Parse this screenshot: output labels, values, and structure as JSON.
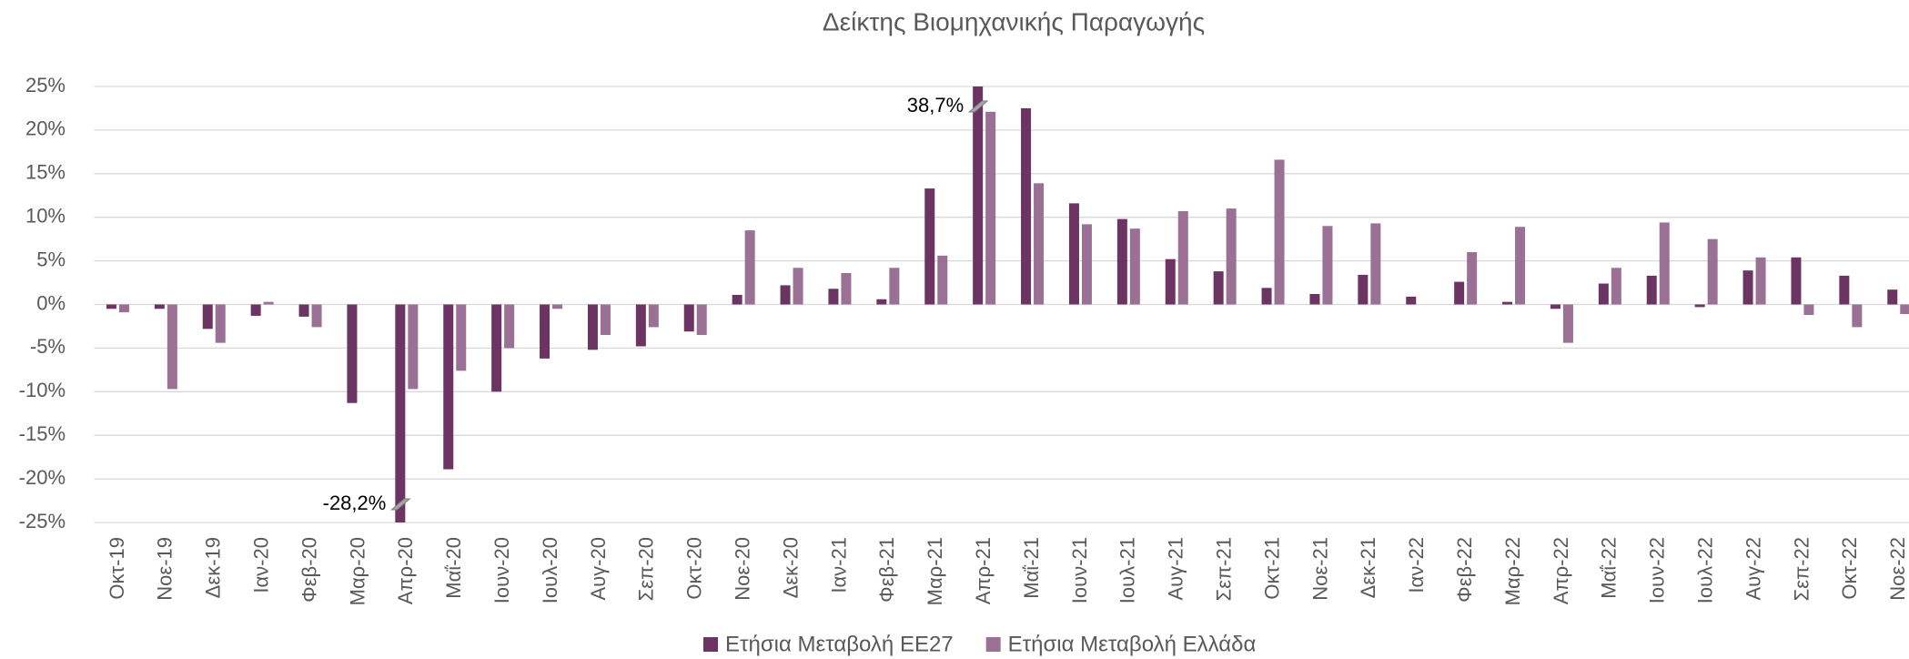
{
  "chart_data": {
    "type": "bar",
    "title": "Δείκτης Βιομηχανικής Παραγωγής",
    "categories": [
      "Οκτ-19",
      "Νοε-19",
      "Δεκ-19",
      "Ιαν-20",
      "Φεβ-20",
      "Μαρ-20",
      "Απρ-20",
      "Μαΐ-20",
      "Ιουν-20",
      "Ιουλ-20",
      "Αυγ-20",
      "Σεπ-20",
      "Οκτ-20",
      "Νοε-20",
      "Δεκ-20",
      "Ιαν-21",
      "Φεβ-21",
      "Μαρ-21",
      "Απρ-21",
      "Μαΐ-21",
      "Ιουν-21",
      "Ιουλ-21",
      "Αυγ-21",
      "Σεπ-21",
      "Οκτ-21",
      "Νοε-21",
      "Δεκ-21",
      "Ιαν-22",
      "Φεβ-22",
      "Μαρ-22",
      "Απρ-22",
      "Μαΐ-22",
      "Ιουν-22",
      "Ιουλ-22",
      "Αυγ-22",
      "Σεπ-22",
      "Οκτ-22",
      "Νοε-22"
    ],
    "series": [
      {
        "name": "Ετήσια Μεταβολή ΕΕ27",
        "color": "#6b3463",
        "values": [
          -0.5,
          -0.5,
          -2.8,
          -1.3,
          -1.4,
          -11.3,
          -28.2,
          -18.9,
          -10.0,
          -6.2,
          -5.2,
          -4.8,
          -3.1,
          1.1,
          2.2,
          1.8,
          0.6,
          13.3,
          38.7,
          22.5,
          11.6,
          9.8,
          5.2,
          3.8,
          1.9,
          1.2,
          3.4,
          0.9,
          2.6,
          0.3,
          -0.5,
          2.4,
          3.3,
          -0.3,
          3.9,
          5.4,
          3.3,
          1.7
        ],
        "value_labels": [
          null,
          null,
          null,
          null,
          null,
          null,
          "-28,2%",
          null,
          null,
          null,
          null,
          null,
          null,
          null,
          null,
          null,
          null,
          null,
          "38,7%",
          null,
          null,
          null,
          null,
          null,
          null,
          null,
          null,
          null,
          null,
          null,
          null,
          null,
          null,
          null,
          null,
          null,
          null,
          null
        ]
      },
      {
        "name": "Ετήσια Μεταβολή Ελλάδα",
        "color": "#9b7095",
        "values": [
          -0.9,
          -9.7,
          -4.4,
          0.3,
          -2.6,
          0,
          -9.7,
          -7.6,
          -5.0,
          -0.5,
          -3.5,
          -2.6,
          -3.5,
          8.5,
          4.2,
          3.6,
          4.2,
          5.6,
          22.1,
          13.9,
          9.2,
          8.7,
          10.7,
          11.0,
          16.6,
          9.0,
          9.3,
          0,
          6.0,
          8.9,
          -4.4,
          4.2,
          9.4,
          7.5,
          5.4,
          -1.2,
          -2.6,
          -1.1
        ]
      }
    ],
    "ylim": [
      -25,
      25
    ],
    "yticks": [
      {
        "value": -25,
        "label": "-25%"
      },
      {
        "value": -20,
        "label": "-20%"
      },
      {
        "value": -15,
        "label": "-15%"
      },
      {
        "value": -10,
        "label": "-10%"
      },
      {
        "value": -5,
        "label": "-5%"
      },
      {
        "value": 0,
        "label": "0%"
      },
      {
        "value": 5,
        "label": "5%"
      },
      {
        "value": 10,
        "label": "10%"
      },
      {
        "value": 15,
        "label": "15%"
      },
      {
        "value": 20,
        "label": "20%"
      },
      {
        "value": 25,
        "label": "25%"
      }
    ],
    "grid": true,
    "legend": "bottom"
  }
}
